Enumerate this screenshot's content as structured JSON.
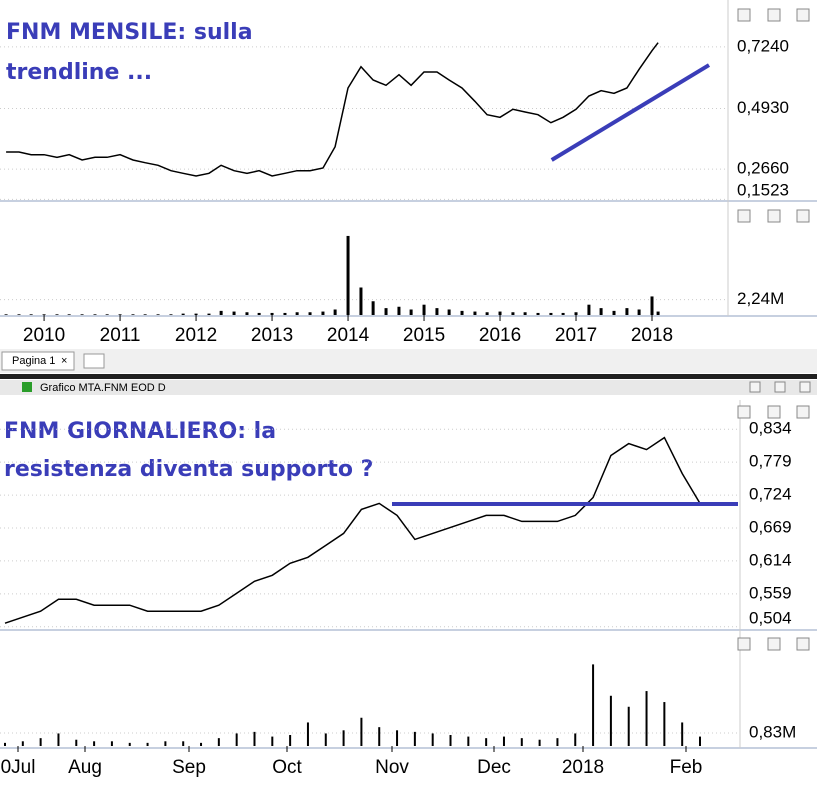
{
  "window": {
    "tab": "Pagina 1",
    "tab_close": "×",
    "title": "Grafico MTA.FNM EOD D"
  },
  "chart_data": [
    {
      "type": "line",
      "title_lines": [
        "FNM MENSILE: sulla",
        "trendline ..."
      ],
      "x": [
        2009.5,
        2009.67,
        2009.83,
        2010,
        2010.17,
        2010.33,
        2010.5,
        2010.67,
        2010.83,
        2011,
        2011.17,
        2011.33,
        2011.5,
        2011.67,
        2011.83,
        2012,
        2012.17,
        2012.33,
        2012.5,
        2012.67,
        2012.83,
        2013,
        2013.17,
        2013.33,
        2013.5,
        2013.67,
        2013.83,
        2014,
        2014.17,
        2014.33,
        2014.5,
        2014.67,
        2014.83,
        2015,
        2015.17,
        2015.33,
        2015.5,
        2015.67,
        2015.83,
        2016,
        2016.17,
        2016.33,
        2016.5,
        2016.67,
        2016.83,
        2017,
        2017.17,
        2017.33,
        2017.5,
        2017.67,
        2017.83,
        2018,
        2018.08
      ],
      "values": [
        0.33,
        0.33,
        0.32,
        0.32,
        0.31,
        0.32,
        0.3,
        0.31,
        0.31,
        0.32,
        0.3,
        0.29,
        0.28,
        0.26,
        0.25,
        0.24,
        0.25,
        0.28,
        0.26,
        0.25,
        0.26,
        0.24,
        0.25,
        0.26,
        0.26,
        0.27,
        0.35,
        0.57,
        0.65,
        0.6,
        0.58,
        0.62,
        0.58,
        0.63,
        0.63,
        0.6,
        0.57,
        0.52,
        0.47,
        0.46,
        0.49,
        0.48,
        0.47,
        0.44,
        0.46,
        0.49,
        0.54,
        0.56,
        0.55,
        0.57,
        0.64,
        0.71,
        0.74
      ],
      "color": "#000000",
      "xlim": [
        2009.42,
        2019.0
      ],
      "xticks": [
        2010,
        2011,
        2012,
        2013,
        2014,
        2015,
        2016,
        2017,
        2018
      ],
      "ylim": [
        0.15,
        0.87
      ],
      "yticks": [
        {
          "value": 0.724,
          "label": "0,7240"
        },
        {
          "value": 0.493,
          "label": "0,4930"
        },
        {
          "value": 0.266,
          "label": "0,2660"
        },
        {
          "value": 0.1523,
          "label": "0,1523"
        }
      ],
      "grid": true,
      "trendline": {
        "x": [
          2016.68,
          2018.75
        ],
        "y": [
          0.3,
          0.656
        ],
        "color": "#3a3db8"
      },
      "volume": {
        "values": [
          0.1,
          0.1,
          0.1,
          0.1,
          0.1,
          0.1,
          0.1,
          0.1,
          0.1,
          0.1,
          0.1,
          0.1,
          0.1,
          0.1,
          0.2,
          0.2,
          0.2,
          0.6,
          0.5,
          0.4,
          0.3,
          0.3,
          0.3,
          0.4,
          0.4,
          0.5,
          0.8,
          11.5,
          4,
          2,
          1,
          1.2,
          0.8,
          1.5,
          1,
          0.8,
          0.6,
          0.5,
          0.4,
          0.5,
          0.4,
          0.4,
          0.3,
          0.3,
          0.3,
          0.4,
          1.5,
          1,
          0.6,
          1,
          0.8,
          2.7,
          0.5
        ],
        "ylim": [
          0,
          16
        ],
        "yticks": [
          {
            "value": 2.24,
            "label": "2,24M"
          }
        ]
      }
    },
    {
      "type": "line",
      "title_lines": [
        "FNM GIORNALIERO: la",
        "resistenza diventa supporto ?"
      ],
      "values": [
        0.51,
        0.52,
        0.53,
        0.55,
        0.55,
        0.54,
        0.54,
        0.54,
        0.53,
        0.53,
        0.53,
        0.53,
        0.54,
        0.56,
        0.58,
        0.59,
        0.61,
        0.62,
        0.64,
        0.66,
        0.7,
        0.71,
        0.69,
        0.65,
        0.66,
        0.67,
        0.68,
        0.69,
        0.69,
        0.68,
        0.68,
        0.68,
        0.69,
        0.72,
        0.79,
        0.81,
        0.8,
        0.82,
        0.76,
        0.71
      ],
      "color": "#000000",
      "x_labels": [
        "0Jul",
        "Aug",
        "Sep",
        "Oct",
        "Nov",
        "Dec",
        "2018",
        "Feb"
      ],
      "ylim": [
        0.502,
        0.836
      ],
      "yticks": [
        {
          "value": 0.834,
          "label": "0,834"
        },
        {
          "value": 0.779,
          "label": "0,779"
        },
        {
          "value": 0.724,
          "label": "0,724"
        },
        {
          "value": 0.669,
          "label": "0,669"
        },
        {
          "value": 0.614,
          "label": "0,614"
        },
        {
          "value": 0.559,
          "label": "0,559"
        },
        {
          "value": 0.504,
          "label": "0,504"
        }
      ],
      "grid": true,
      "support": {
        "y": 0.709,
        "color": "#3a3db8"
      },
      "volume": {
        "values": [
          0.2,
          0.3,
          0.5,
          0.8,
          0.4,
          0.3,
          0.3,
          0.2,
          0.2,
          0.3,
          0.3,
          0.2,
          0.5,
          0.8,
          0.9,
          0.6,
          0.7,
          1.5,
          0.8,
          1,
          1.8,
          1.2,
          1,
          0.9,
          0.8,
          0.7,
          0.6,
          0.5,
          0.6,
          0.5,
          0.4,
          0.5,
          0.8,
          5.2,
          3.2,
          2.5,
          3.5,
          2.8,
          1.5,
          0.6
        ],
        "ylim": [
          0,
          7.2
        ],
        "yticks": [
          {
            "value": 0.83,
            "label": "0,83M"
          }
        ]
      }
    }
  ]
}
